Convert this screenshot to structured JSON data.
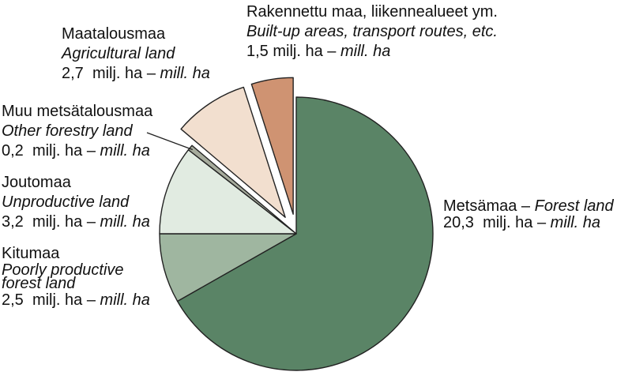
{
  "chart_data": {
    "type": "pie",
    "unit_fi": "milj. ha",
    "unit_en": "mill. ha",
    "slices": [
      {
        "fi": "Metsämaa",
        "en": "Forest land",
        "value": 20.3,
        "value_text": "20,3",
        "color": "#5a8466",
        "exploded": false
      },
      {
        "fi": "Kitumaa",
        "en": "Poorly productive forest land",
        "en_lines": [
          "Poorly productive",
          "forest land"
        ],
        "value": 2.5,
        "value_text": "2,5",
        "color": "#9fb6a0",
        "exploded": false
      },
      {
        "fi": "Joutomaa",
        "en": "Unproductive land",
        "value": 3.2,
        "value_text": "3,2",
        "color": "#e1ebe1",
        "exploded": false
      },
      {
        "fi": "Muu metsätalousmaa",
        "en": "Other forestry land",
        "value": 0.2,
        "value_text": "0,2",
        "color": "#a6ab9c",
        "exploded": false
      },
      {
        "fi": "Maatalousmaa",
        "en": "Agricultural land",
        "value": 2.7,
        "value_text": "2,7",
        "color": "#f2dfcf",
        "exploded": true
      },
      {
        "fi": "Rakennettu maa, liikennealueet ym.",
        "en": "Built-up areas, transport routes, etc.",
        "value": 1.5,
        "value_text": "1,5",
        "color": "#cf9372",
        "exploded": true
      }
    ]
  }
}
